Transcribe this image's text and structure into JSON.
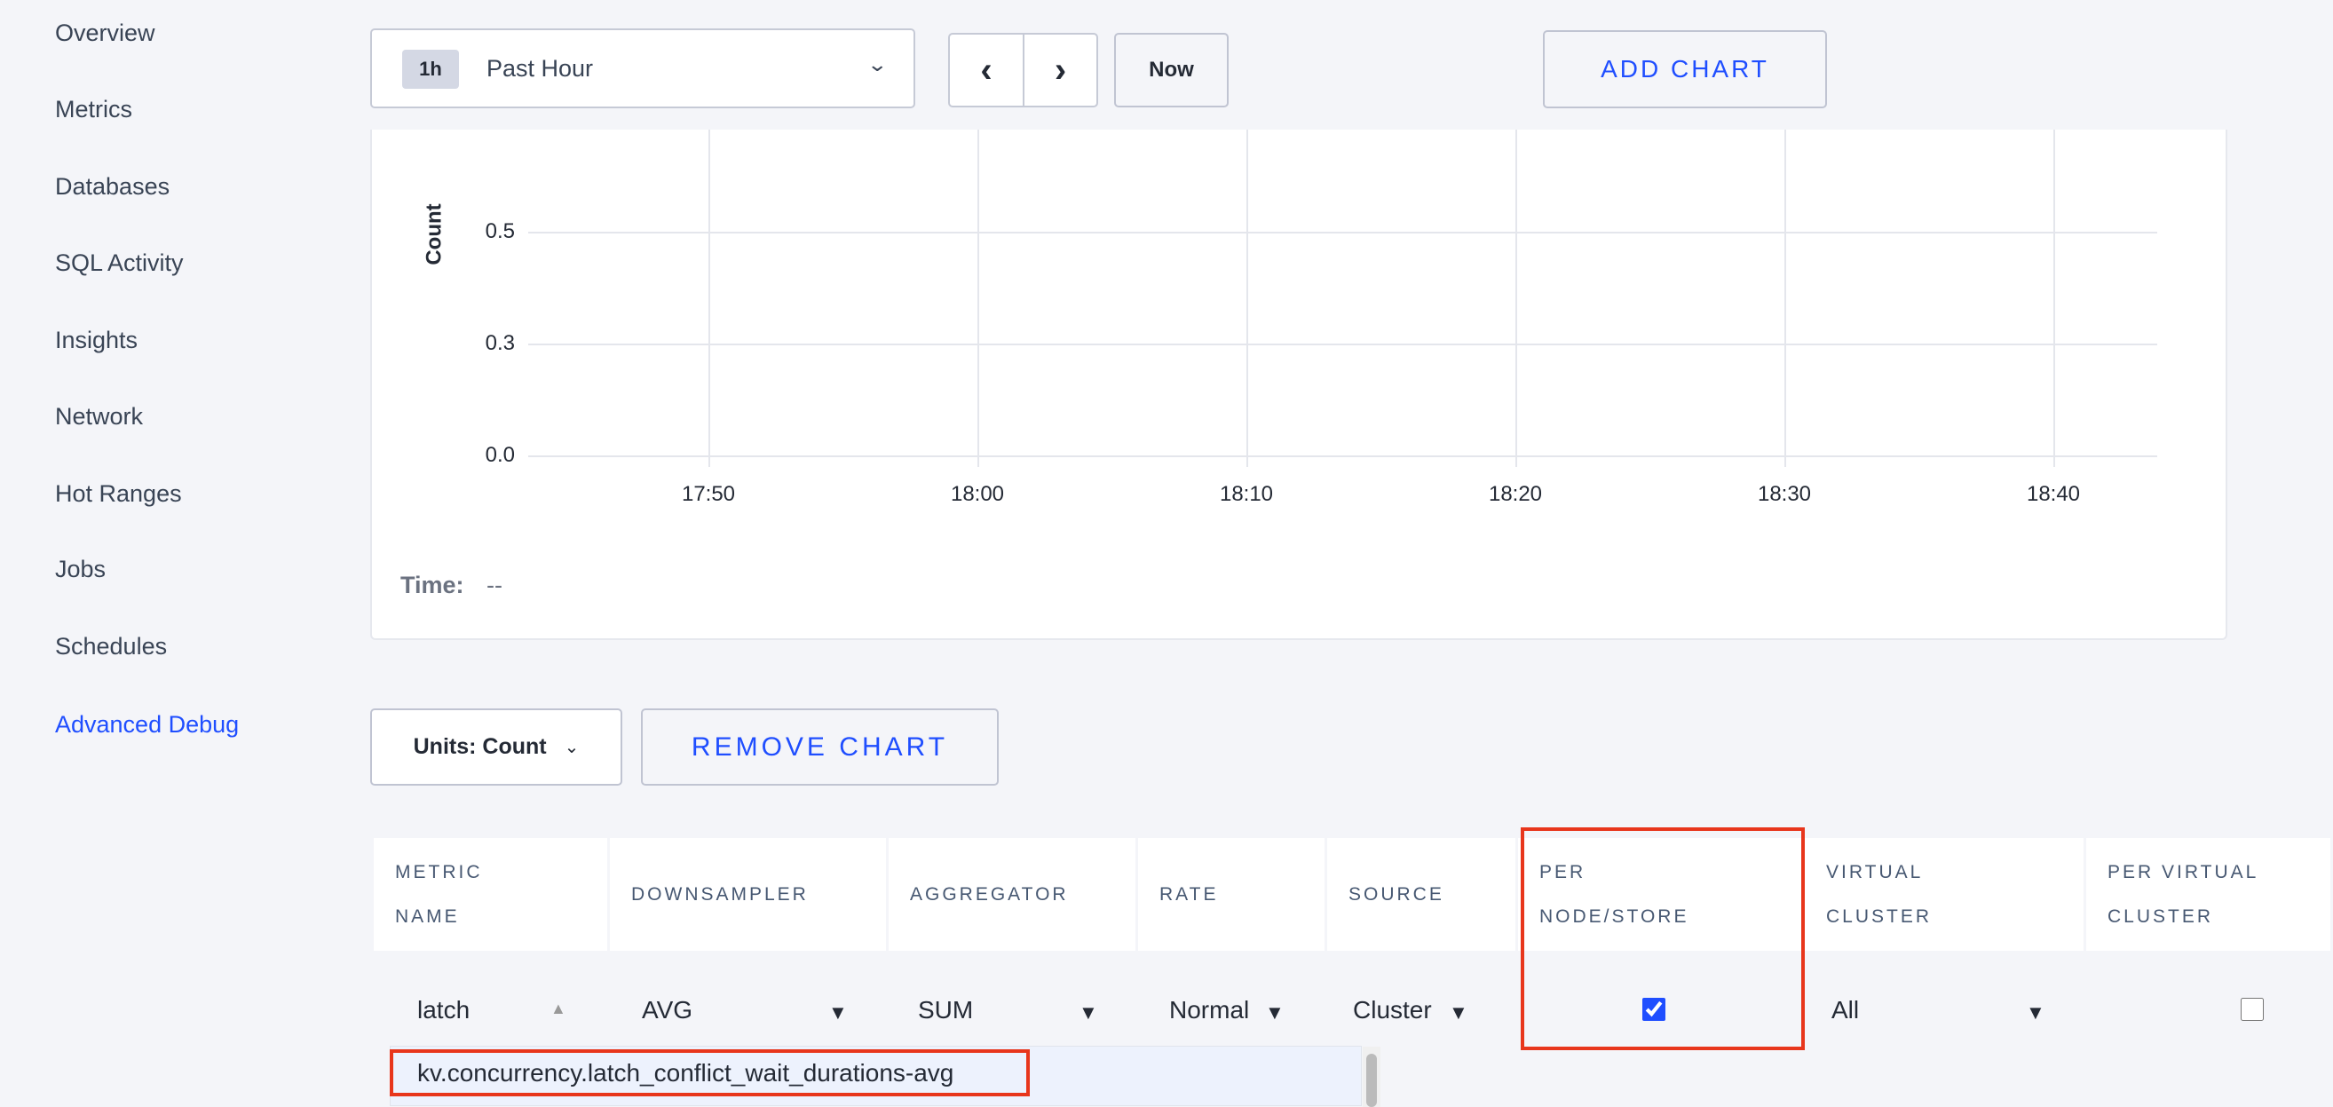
{
  "sidebar": {
    "items": [
      {
        "label": "Overview"
      },
      {
        "label": "Metrics"
      },
      {
        "label": "Databases"
      },
      {
        "label": "SQL Activity"
      },
      {
        "label": "Insights"
      },
      {
        "label": "Network"
      },
      {
        "label": "Hot Ranges"
      },
      {
        "label": "Jobs"
      },
      {
        "label": "Schedules"
      },
      {
        "label": "Advanced Debug",
        "active": true
      }
    ]
  },
  "toolbar": {
    "time_badge": "1h",
    "time_label": "Past Hour",
    "now_label": "Now",
    "add_chart_label": "ADD CHART",
    "prev_icon": "chevron-left",
    "next_icon": "chevron-right"
  },
  "chart_data": {
    "type": "line",
    "ylabel": "Count",
    "yticks": [
      "0.5",
      "0.3",
      "0.0"
    ],
    "xticks": [
      "17:50",
      "18:00",
      "18:10",
      "18:20",
      "18:30",
      "18:40"
    ],
    "series": [],
    "grid": true
  },
  "chart_footer": {
    "time_label": "Time:",
    "time_value": "--"
  },
  "controls": {
    "units_label": "Units: Count",
    "remove_chart_label": "REMOVE CHART"
  },
  "table": {
    "headers": [
      "METRIC NAME",
      "DOWNSAMPLER",
      "AGGREGATOR",
      "RATE",
      "SOURCE",
      "PER NODE/STORE",
      "VIRTUAL CLUSTER",
      "PER VIRTUAL CLUSTER"
    ],
    "row": {
      "metric": "latch",
      "downsampler": "AVG",
      "aggregator": "SUM",
      "rate": "Normal",
      "source": "Cluster",
      "per_node": true,
      "virtual_cluster": "All",
      "per_virtual_cluster": false
    }
  },
  "autocomplete": {
    "options": [
      "kv.concurrency.latch_conflict_wait_durations-avg"
    ]
  },
  "colors": {
    "accent": "#1f4eff",
    "highlight": "#e8361c"
  }
}
